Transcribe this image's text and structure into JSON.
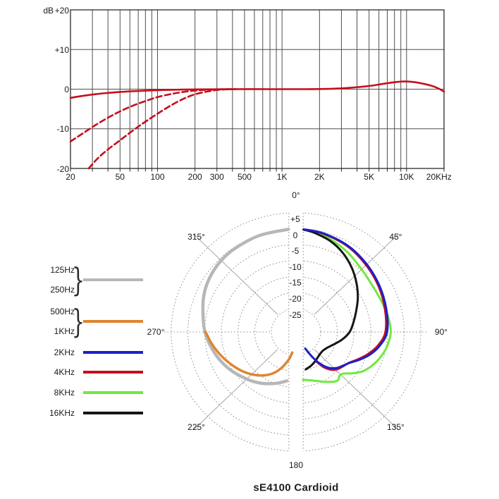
{
  "title": "sE4100 Cardioid",
  "colors": {
    "curve_red": "#c60f1c",
    "grid_dark": "#4f4f4f",
    "frame": "#2b2b2b",
    "polar_grid": "#8f8f8f",
    "polar_diag": "#a6a6a6",
    "gray_series": "#b7b7b7",
    "orange_series": "#de8630",
    "blue_series": "#1e1ecd",
    "green_series": "#70e93f",
    "black_series": "#161616"
  },
  "chart_data": [
    {
      "type": "line",
      "name": "frequency_response",
      "title": "",
      "xlabel": "",
      "ylabel": "dB",
      "x_scale": "log",
      "x_range": [
        20,
        20000
      ],
      "ylim": [
        -20,
        20
      ],
      "grid": true,
      "y_ticks": [
        {
          "v": 20,
          "label": "+20"
        },
        {
          "v": 10,
          "label": "+10"
        },
        {
          "v": 0,
          "label": "0"
        },
        {
          "v": -10,
          "label": "-10"
        },
        {
          "v": -20,
          "label": "-20"
        }
      ],
      "x_ticks": [
        {
          "f": 20,
          "label": "20"
        },
        {
          "f": 50,
          "label": "50"
        },
        {
          "f": 100,
          "label": "100"
        },
        {
          "f": 200,
          "label": "200"
        },
        {
          "f": 300,
          "label": "300"
        },
        {
          "f": 500,
          "label": "500"
        },
        {
          "f": 1000,
          "label": "1K"
        },
        {
          "f": 2000,
          "label": "2K"
        },
        {
          "f": 5000,
          "label": "5K"
        },
        {
          "f": 10000,
          "label": "10K"
        },
        {
          "f": 20000,
          "label": "20KHz"
        }
      ],
      "gridline_freqs": [
        20,
        30,
        40,
        50,
        60,
        70,
        80,
        90,
        100,
        200,
        300,
        400,
        500,
        600,
        700,
        800,
        900,
        1000,
        2000,
        3000,
        4000,
        5000,
        6000,
        7000,
        8000,
        9000,
        10000,
        20000
      ],
      "series": [
        {
          "name": "flat_response",
          "style": "solid",
          "color": "#c60f1c",
          "points": [
            [
              20,
              -2.2
            ],
            [
              25,
              -1.7
            ],
            [
              32,
              -1.25
            ],
            [
              40,
              -0.95
            ],
            [
              50,
              -0.7
            ],
            [
              65,
              -0.5
            ],
            [
              85,
              -0.35
            ],
            [
              110,
              -0.22
            ],
            [
              150,
              -0.12
            ],
            [
              220,
              -0.05
            ],
            [
              400,
              0
            ],
            [
              800,
              0
            ],
            [
              1500,
              0
            ],
            [
              2500,
              0.1
            ],
            [
              3500,
              0.35
            ],
            [
              5000,
              0.8
            ],
            [
              6500,
              1.35
            ],
            [
              8000,
              1.75
            ],
            [
              9500,
              1.95
            ],
            [
              11000,
              1.85
            ],
            [
              13000,
              1.5
            ],
            [
              15500,
              0.95
            ],
            [
              18000,
              0.2
            ],
            [
              20000,
              -0.65
            ]
          ]
        },
        {
          "name": "bass_cut_1",
          "style": "dashed",
          "color": "#c60f1c",
          "points": [
            [
              20,
              -13.2
            ],
            [
              25,
              -11.2
            ],
            [
              32,
              -9.0
            ],
            [
              40,
              -7.2
            ],
            [
              50,
              -5.6
            ],
            [
              63,
              -4.2
            ],
            [
              80,
              -3.0
            ],
            [
              100,
              -2.0
            ],
            [
              130,
              -1.2
            ],
            [
              170,
              -0.6
            ],
            [
              220,
              -0.25
            ],
            [
              300,
              -0.05
            ],
            [
              420,
              0
            ]
          ]
        },
        {
          "name": "bass_cut_2",
          "style": "dashed",
          "color": "#c60f1c",
          "points": [
            [
              28,
              -20
            ],
            [
              33,
              -17.5
            ],
            [
              40,
              -15.2
            ],
            [
              50,
              -12.9
            ],
            [
              63,
              -10.5
            ],
            [
              80,
              -8.2
            ],
            [
              100,
              -6.2
            ],
            [
              125,
              -4.3
            ],
            [
              160,
              -2.5
            ],
            [
              200,
              -1.3
            ],
            [
              260,
              -0.5
            ],
            [
              330,
              -0.1
            ],
            [
              430,
              0
            ]
          ]
        }
      ]
    },
    {
      "type": "polar",
      "name": "polar_pattern",
      "title": "sE4100 Cardioid",
      "db_rings": [
        {
          "v": 5,
          "label": "+5"
        },
        {
          "v": 0,
          "label": "0"
        },
        {
          "v": -5,
          "label": "-5"
        },
        {
          "v": -10,
          "label": "-10"
        },
        {
          "v": -15,
          "label": "-15"
        },
        {
          "v": -20,
          "label": "-20"
        },
        {
          "v": -25,
          "label": "-25"
        }
      ],
      "angle_labels": [
        {
          "deg": 0,
          "label": "0°"
        },
        {
          "deg": 45,
          "label": "45°"
        },
        {
          "deg": 90,
          "label": "90°"
        },
        {
          "deg": 135,
          "label": "135°"
        },
        {
          "deg": 180,
          "label": "180"
        },
        {
          "deg": 225,
          "label": "225°"
        },
        {
          "deg": 270,
          "label": "270°"
        },
        {
          "deg": 315,
          "label": "315°"
        }
      ],
      "legend": [
        {
          "labels": [
            "125Hz",
            "250Hz"
          ],
          "color": "#b7b7b7",
          "brace": true
        },
        {
          "labels": [
            "500Hz",
            "1KHz"
          ],
          "color": "#de8630",
          "brace": true
        },
        {
          "labels": [
            "2KHz"
          ],
          "color": "#1e1ecd",
          "brace": false
        },
        {
          "labels": [
            "4KHz"
          ],
          "color": "#c60f1c",
          "brace": false
        },
        {
          "labels": [
            "8KHz"
          ],
          "color": "#70e93f",
          "brace": false
        },
        {
          "labels": [
            "16KHz"
          ],
          "color": "#161616",
          "brace": false
        }
      ],
      "series": [
        {
          "name": "125Hz-250Hz",
          "color": "#b7b7b7",
          "width": 4.5,
          "side": "left",
          "points": [
            [
              4,
              -0.1
            ],
            [
              20,
              -0.2
            ],
            [
              35,
              -0.45
            ],
            [
              45,
              -0.7
            ],
            [
              55,
              -1.3
            ],
            [
              65,
              -2.2
            ],
            [
              75,
              -3.5
            ],
            [
              90,
              -5.1
            ],
            [
              105,
              -7.1
            ],
            [
              120,
              -9.2
            ],
            [
              135,
              -11.5
            ],
            [
              147,
              -13.2
            ],
            [
              157,
              -14.8
            ],
            [
              164,
              -15.9
            ],
            [
              170,
              -16.8
            ]
          ]
        },
        {
          "name": "500Hz-1KHz",
          "color": "#de8630",
          "width": 3.5,
          "side": "left",
          "points": [
            [
              90,
              -5.3
            ],
            [
              98,
              -6.8
            ],
            [
              106,
              -8.3
            ],
            [
              114,
              -9.8
            ],
            [
              122,
              -11.2
            ],
            [
              130,
              -12.6
            ],
            [
              138,
              -14.2
            ],
            [
              146,
              -16.0
            ],
            [
              153,
              -18.0
            ],
            [
              159,
              -20.3
            ],
            [
              164,
              -22.6
            ],
            [
              167,
              -24.0
            ],
            [
              170,
              -25.8
            ]
          ]
        },
        {
          "name": "8KHz",
          "color": "#70e93f",
          "width": 3,
          "side": "right",
          "points": [
            [
              4,
              -0.2
            ],
            [
              15,
              -1.0
            ],
            [
              30,
              -2.8
            ],
            [
              45,
              -4.6
            ],
            [
              60,
              -5.3
            ],
            [
              70,
              -5.0
            ],
            [
              80,
              -4.4
            ],
            [
              90,
              -4.0
            ],
            [
              100,
              -4.8
            ],
            [
              108,
              -6.0
            ],
            [
              115,
              -7.3
            ],
            [
              122,
              -9.0
            ],
            [
              128,
              -11.3
            ],
            [
              133,
              -13.2
            ],
            [
              137,
              -13.4
            ],
            [
              140,
              -12.7
            ],
            [
              144,
              -13.1
            ],
            [
              150,
              -14.3
            ],
            [
              158,
              -15.8
            ],
            [
              165,
              -16.7
            ],
            [
              172,
              -17.2
            ]
          ]
        },
        {
          "name": "4KHz",
          "color": "#c60f1c",
          "width": 3,
          "side": "right",
          "points": [
            [
              4,
              -0.15
            ],
            [
              15,
              -0.5
            ],
            [
              30,
              -1.4
            ],
            [
              45,
              -2.7
            ],
            [
              60,
              -3.8
            ],
            [
              75,
              -4.8
            ],
            [
              90,
              -5.6
            ],
            [
              100,
              -7.5
            ],
            [
              108,
              -9.8
            ],
            [
              115,
              -12.0
            ],
            [
              121,
              -13.7
            ],
            [
              127,
              -14.6
            ],
            [
              133,
              -15.3
            ],
            [
              138,
              -16.4
            ],
            [
              143,
              -18.5
            ],
            [
              147,
              -21.5
            ]
          ]
        },
        {
          "name": "16KHz",
          "color": "#161616",
          "width": 3,
          "side": "right",
          "points": [
            [
              4,
              -0.2
            ],
            [
              10,
              -0.8
            ],
            [
              20,
              -2.1
            ],
            [
              30,
              -4.0
            ],
            [
              40,
              -6.3
            ],
            [
              50,
              -8.7
            ],
            [
              60,
              -11.0
            ],
            [
              70,
              -13.2
            ],
            [
              80,
              -14.9
            ],
            [
              90,
              -16.3
            ],
            [
              100,
              -18.4
            ],
            [
              110,
              -20.6
            ],
            [
              118,
              -21.8
            ],
            [
              126,
              -22.4
            ],
            [
              134,
              -22.4
            ],
            [
              142,
              -22.0
            ],
            [
              150,
              -21.4
            ],
            [
              158,
              -20.8
            ],
            [
              166,
              -20.3
            ]
          ]
        },
        {
          "name": "2KHz",
          "color": "#1e1ecd",
          "width": 3,
          "side": "right",
          "points": [
            [
              4,
              -0.1
            ],
            [
              15,
              -0.4
            ],
            [
              30,
              -1.2
            ],
            [
              45,
              -2.4
            ],
            [
              60,
              -3.5
            ],
            [
              75,
              -4.4
            ],
            [
              90,
              -5.1
            ],
            [
              100,
              -7.0
            ],
            [
              108,
              -9.2
            ],
            [
              115,
              -11.6
            ],
            [
              121,
              -13.6
            ],
            [
              127,
              -14.8
            ],
            [
              133,
              -15.8
            ],
            [
              139,
              -17.5
            ],
            [
              144,
              -20.0
            ],
            [
              148,
              -23.0
            ],
            [
              152,
              -26.5
            ]
          ]
        }
      ]
    }
  ]
}
